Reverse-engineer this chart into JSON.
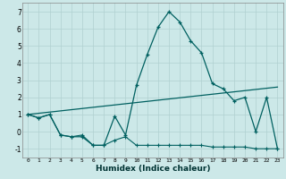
{
  "xlabel": "Humidex (Indice chaleur)",
  "bg_color": "#cce8e8",
  "grid_color": "#b0d0d0",
  "line_color": "#006060",
  "xlim": [
    -0.5,
    23.5
  ],
  "ylim": [
    -1.5,
    7.5
  ],
  "xticks": [
    0,
    1,
    2,
    3,
    4,
    5,
    6,
    7,
    8,
    9,
    10,
    11,
    12,
    13,
    14,
    15,
    16,
    17,
    18,
    19,
    20,
    21,
    22,
    23
  ],
  "yticks": [
    -1,
    0,
    1,
    2,
    3,
    4,
    5,
    6,
    7
  ],
  "curve1_x": [
    0,
    1,
    2,
    3,
    4,
    5,
    6,
    7,
    8,
    9,
    10,
    11,
    12,
    13,
    14,
    15,
    16,
    17,
    18,
    19,
    20,
    21,
    22,
    23
  ],
  "curve1_y": [
    1.0,
    0.8,
    1.0,
    -0.2,
    -0.3,
    -0.3,
    -0.8,
    -0.8,
    0.9,
    -0.2,
    2.7,
    4.5,
    6.1,
    7.0,
    6.4,
    5.3,
    4.6,
    2.8,
    2.5,
    1.8,
    2.0,
    0.0,
    2.0,
    -1.0
  ],
  "curve2_x": [
    0,
    1,
    2,
    3,
    4,
    5,
    6,
    7,
    8,
    9,
    10,
    11,
    12,
    13,
    14,
    15,
    16,
    17,
    18,
    19,
    20,
    21,
    22,
    23
  ],
  "curve2_y": [
    1.0,
    0.8,
    1.0,
    -0.2,
    -0.3,
    -0.2,
    -0.8,
    -0.8,
    -0.5,
    -0.3,
    -0.8,
    -0.8,
    -0.8,
    -0.8,
    -0.8,
    -0.8,
    -0.8,
    -0.9,
    -0.9,
    -0.9,
    -0.9,
    -1.0,
    -1.0,
    -1.0
  ],
  "line_x": [
    0,
    23
  ],
  "line_y": [
    1.0,
    2.6
  ]
}
